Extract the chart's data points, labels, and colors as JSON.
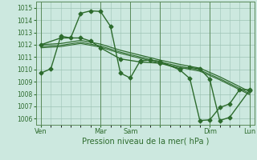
{
  "bg_color": "#cce8df",
  "grid_color": "#9dc4b4",
  "line_color": "#2d6b2d",
  "xlabel": "Pression niveau de la mer( hPa )",
  "ylim": [
    1005.5,
    1015.5
  ],
  "yticks": [
    1006,
    1007,
    1008,
    1009,
    1010,
    1011,
    1012,
    1013,
    1014,
    1015
  ],
  "xtick_labels": [
    "Ven",
    "",
    "Mar",
    "Sam",
    "",
    "Dim",
    "",
    "Lun"
  ],
  "series": [
    {
      "x": [
        0,
        1,
        2,
        3,
        4,
        5,
        6,
        7,
        8,
        9,
        10,
        11,
        12,
        14,
        15,
        16,
        17,
        18,
        19,
        20,
        21
      ],
      "y": [
        1009.7,
        1010.05,
        1012.7,
        1012.55,
        1014.55,
        1014.75,
        1014.7,
        1013.5,
        1009.7,
        1009.3,
        1010.7,
        1010.75,
        1010.65,
        1009.95,
        1009.25,
        1005.85,
        1005.9,
        1006.9,
        1007.2,
        1008.35,
        1008.35
      ],
      "marker": "D",
      "ms": 2.5,
      "lw": 1.0
    },
    {
      "x": [
        0,
        2,
        4,
        6,
        8,
        10,
        12,
        14,
        16,
        18,
        21
      ],
      "y": [
        1012.0,
        1012.1,
        1012.35,
        1012.05,
        1011.55,
        1011.15,
        1010.75,
        1010.4,
        1010.1,
        1009.4,
        1008.2
      ],
      "marker": null,
      "ms": 0,
      "lw": 0.9
    },
    {
      "x": [
        0,
        2,
        4,
        6,
        8,
        10,
        12,
        14,
        16,
        18,
        21
      ],
      "y": [
        1011.85,
        1011.95,
        1012.2,
        1011.9,
        1011.4,
        1011.0,
        1010.6,
        1010.25,
        1009.95,
        1009.25,
        1008.05
      ],
      "marker": null,
      "ms": 0,
      "lw": 0.8
    },
    {
      "x": [
        0,
        2,
        4,
        6,
        8,
        10,
        12,
        14,
        16,
        18,
        21
      ],
      "y": [
        1011.75,
        1011.85,
        1012.1,
        1011.8,
        1011.3,
        1010.9,
        1010.5,
        1010.15,
        1009.85,
        1009.15,
        1007.95
      ],
      "marker": null,
      "ms": 0,
      "lw": 0.8
    },
    {
      "x": [
        0,
        2,
        4,
        5,
        6,
        8,
        10,
        12,
        14,
        15,
        16,
        17,
        18,
        19,
        21
      ],
      "y": [
        1012.0,
        1012.55,
        1012.55,
        1012.3,
        1011.75,
        1010.85,
        1010.6,
        1010.5,
        1010.05,
        1010.15,
        1010.05,
        1009.2,
        1005.85,
        1006.1,
        1008.3
      ],
      "marker": "D",
      "ms": 2.5,
      "lw": 1.0
    }
  ],
  "vline_positions": [
    0,
    6,
    9,
    12,
    17,
    21
  ],
  "vline_color": "#5a8a5a",
  "xtick_names": [
    "Ven",
    "Mar",
    "Sam",
    "",
    "Dim",
    "Lun"
  ]
}
